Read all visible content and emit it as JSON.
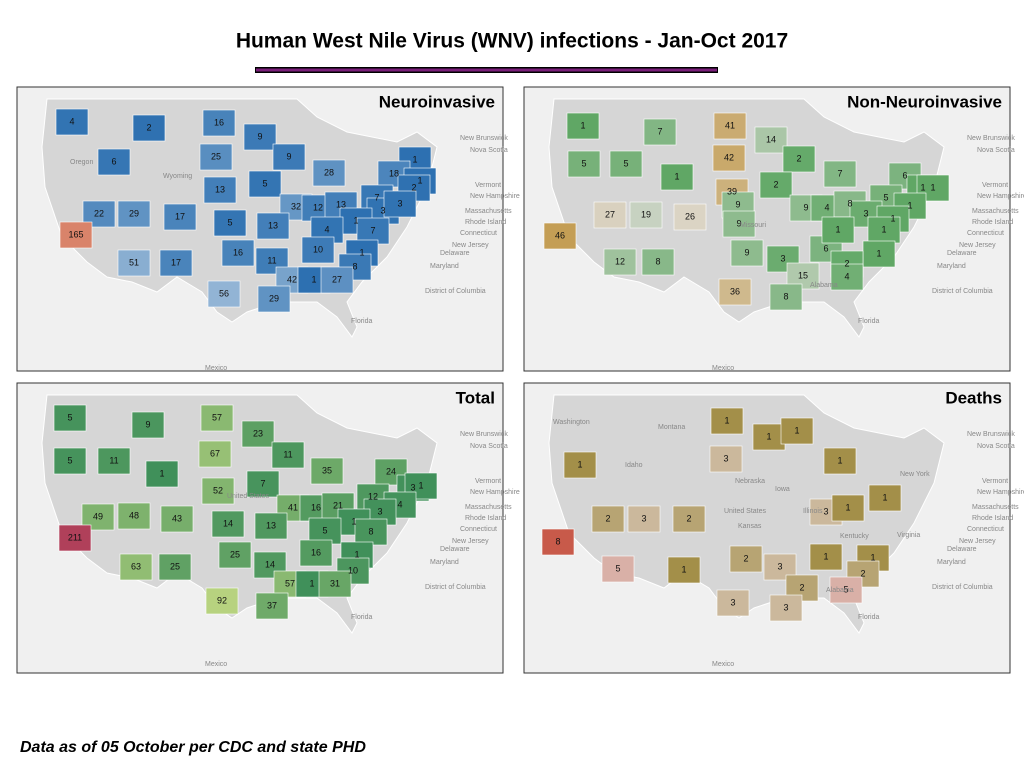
{
  "header": {
    "title": "Human West Nile Virus (WNV) infections - Jan-Oct 2017"
  },
  "map_labels": [
    "Vermont",
    "New Hampshire",
    "Massachusetts",
    "Rhode Island",
    "Connecticut",
    "New Jersey",
    "Delaware",
    "Maryland",
    "District of Columbia",
    "New Brunswick",
    "Nova Scotia",
    "Florida",
    "Mexico"
  ],
  "panels": [
    {
      "title": "Neuroinvasive",
      "colors": [
        "#2b6fb0",
        "#c3d5e6",
        "#d9836a"
      ],
      "place_labels": [
        "Oregon",
        "Wyoming"
      ],
      "values": [
        4,
        2,
        16,
        9,
        6,
        25,
        9,
        28,
        1,
        18,
        1,
        2,
        13,
        5,
        22,
        29,
        17,
        32,
        12,
        13,
        7,
        3,
        3,
        5,
        13,
        1,
        4,
        7,
        165,
        16,
        10,
        1,
        11,
        8,
        51,
        17,
        42,
        1,
        27,
        56,
        29
      ]
    },
    {
      "title": "Non-Neuroinvasive",
      "colors": [
        "#5aa560",
        "#dedcd5",
        "#c49e55"
      ],
      "place_labels": [
        "Missouri",
        "Alabama"
      ],
      "values": [
        1,
        7,
        41,
        14,
        5,
        5,
        42,
        2,
        7,
        6,
        1,
        39,
        2,
        1,
        1,
        27,
        19,
        26,
        9,
        9,
        4,
        8,
        5,
        3,
        1,
        1,
        46,
        9,
        6,
        1,
        1,
        9,
        3,
        1,
        12,
        8,
        15,
        2,
        4,
        36,
        8
      ]
    },
    {
      "title": "Total",
      "colors": [
        "#3f8f5a",
        "#c9dc84",
        "#b0405a"
      ],
      "place_labels": [
        "United States"
      ],
      "values": [
        5,
        9,
        57,
        23,
        5,
        11,
        67,
        11,
        35,
        24,
        1,
        3,
        1,
        52,
        7,
        12,
        49,
        48,
        43,
        41,
        16,
        21,
        4,
        3,
        14,
        13,
        1,
        5,
        8,
        211,
        25,
        16,
        1,
        14,
        10,
        63,
        25,
        57,
        1,
        31,
        92,
        37
      ]
    },
    {
      "title": "Deaths",
      "colors": [
        "#8f7a1f",
        "#dfcdc6",
        "#c85a4a"
      ],
      "place_labels": [
        "Washington",
        "Montana",
        "Idaho",
        "Nebraska",
        "Iowa",
        "United States",
        "Illinois",
        "Kansas",
        "Kentucky",
        "Virginia",
        "Alabama",
        "New York"
      ],
      "values": [
        1,
        1,
        1,
        3,
        1,
        1,
        2,
        3,
        2,
        3,
        1,
        1,
        8,
        2,
        3,
        1,
        1,
        5,
        1,
        2,
        2,
        5,
        3,
        3
      ]
    }
  ],
  "footer": {
    "note": "Data as of 05 October per CDC and state PHD"
  }
}
